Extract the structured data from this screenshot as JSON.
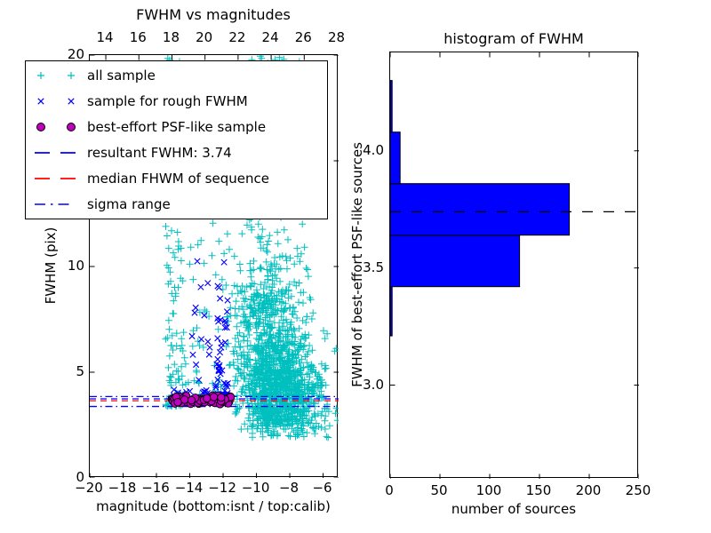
{
  "colors": {
    "cyan": "#00bfbf",
    "blue": "#0000ff",
    "magenta": "#bf00bf",
    "red": "#ff0000",
    "black": "#000000",
    "background": "#ffffff"
  },
  "legend": {
    "entries": [
      {
        "id": "all-sample",
        "marker": "plus",
        "color": "#00bfbf",
        "label": "all sample"
      },
      {
        "id": "rough-fwhm-sample",
        "marker": "cross",
        "color": "#0000ff",
        "label": "sample for rough FWHM"
      },
      {
        "id": "psf-like-sample",
        "marker": "circle",
        "color": "#bf00bf",
        "edge_color": "#000000",
        "label": "best-effort PSF-like sample"
      },
      {
        "id": "resultant-fwhm",
        "marker": "dashed-line",
        "color": "#0000ff",
        "label": "resultant FWHM: 3.74"
      },
      {
        "id": "median-fwhm",
        "marker": "dashed-line",
        "color": "#ff0000",
        "label": "median FHWM of sequence"
      },
      {
        "id": "sigma-range",
        "marker": "dashdot-line",
        "color": "#0000ff",
        "label": "sigma range"
      }
    ]
  },
  "chart_data": [
    {
      "type": "scatter",
      "title": "FWHM vs magnitudes",
      "xlabel": "magnitude (bottom:isnt / top:calib)",
      "ylabel": "FWHM (pix)",
      "xlim": [
        -20,
        -5.07
      ],
      "ylim": [
        0,
        20
      ],
      "top_xlim": [
        13.03,
        28.08
      ],
      "x_ticks": [
        -20,
        -18,
        -16,
        -14,
        -12,
        -10,
        -8,
        -6
      ],
      "x_tick_labels": [
        "−20",
        "−18",
        "−16",
        "−14",
        "−12",
        "−10",
        "−8",
        "−6"
      ],
      "top_ticks": [
        14,
        16,
        18,
        20,
        22,
        24,
        26,
        28
      ],
      "top_tick_labels": [
        "14",
        "16",
        "18",
        "20",
        "22",
        "24",
        "26",
        "28"
      ],
      "y_ticks": [
        0,
        5,
        10,
        15,
        20
      ],
      "y_tick_labels": [
        "0",
        "5",
        "10",
        "15",
        "20"
      ],
      "grid": false,
      "legend_position": "upper left",
      "hlines": [
        {
          "name": "sigma-upper",
          "y": 3.85,
          "color": "#0000ff",
          "style": "dashdot"
        },
        {
          "name": "resultant-fwhm",
          "y": 3.74,
          "color": "#0000ff",
          "style": "dashed"
        },
        {
          "name": "median-fwhm",
          "y": 3.65,
          "color": "#ff0000",
          "style": "dashed"
        },
        {
          "name": "sigma-lower",
          "y": 3.38,
          "color": "#0000ff",
          "style": "dashdot"
        }
      ],
      "seed": 42,
      "series": [
        {
          "name": "all sample",
          "marker": "plus",
          "color": "#00bfbf",
          "clusters": [
            {
              "n": 110,
              "x": [
                -15.45,
                -14.35
              ],
              "y": [
                3.4,
                20.0
              ],
              "ydist": "powlow"
            },
            {
              "n": 55,
              "x": [
                -14.35,
                -12.55
              ],
              "y": [
                3.6,
                19.5
              ],
              "ydist": "powlow"
            },
            {
              "n": 45,
              "x": [
                -12.55,
                -11.45
              ],
              "y": [
                3.8,
                20.0
              ],
              "ydist": "powlow"
            },
            {
              "n": 850,
              "xdist": "gauss",
              "xmu": -8.6,
              "xsigma": 1.25,
              "x": [
                -11.4,
                -5.1
              ],
              "ydist": "gauss",
              "ymu": 4.3,
              "ysigma": 1.1,
              "y": [
                2.3,
                12.0
              ]
            },
            {
              "n": 480,
              "xdist": "gauss",
              "xmu": -9.3,
              "xsigma": 1.2,
              "x": [
                -11.4,
                -5.1
              ],
              "ydist": "gauss",
              "ymu": 6.5,
              "ysigma": 2.2,
              "y": [
                2.6,
                13.5
              ]
            },
            {
              "n": 130,
              "xdist": "gauss",
              "xmu": -9.4,
              "xsigma": 0.9,
              "x": [
                -11.3,
                -6.0
              ],
              "y": [
                8.0,
                20.0
              ],
              "ydist": "powlow"
            },
            {
              "n": 130,
              "xdist": "gauss",
              "xmu": -7.8,
              "xsigma": 1.4,
              "x": [
                -11.0,
                -5.1
              ],
              "y": [
                1.9,
                3.3
              ],
              "ydist": "uniform"
            },
            {
              "n": 10,
              "x": [
                -10.4,
                -8.4
              ],
              "y": [
                19.3,
                20.0
              ],
              "ydist": "uniform"
            }
          ]
        },
        {
          "name": "sample for rough FWHM",
          "marker": "cross",
          "color": "#0000ff",
          "clusters": [
            {
              "n": 52,
              "x": [
                -12.45,
                -11.7
              ],
              "y": [
                3.9,
                13.5
              ],
              "ydist": "powlow"
            },
            {
              "n": 6,
              "x": [
                -12.4,
                -11.75
              ],
              "y": [
                13.5,
                18.0
              ],
              "ydist": "uniform"
            },
            {
              "n": 18,
              "x": [
                -13.9,
                -12.45
              ],
              "y": [
                4.0,
                11.5
              ],
              "ydist": "powlow"
            },
            {
              "n": 48,
              "x": [
                -15.0,
                -11.5
              ],
              "ydist": "gauss",
              "ymu": 3.8,
              "ysigma": 0.18,
              "y": [
                3.45,
                4.3
              ]
            }
          ]
        },
        {
          "name": "best-effort PSF-like sample",
          "marker": "circle",
          "color": "#bf00bf",
          "edge_color": "#000000",
          "clusters": [
            {
              "n": 60,
              "x": [
                -15.1,
                -11.55
              ],
              "ydist": "gauss",
              "ymu": 3.68,
              "ysigma": 0.11,
              "y": [
                3.44,
                3.96
              ]
            }
          ]
        }
      ]
    },
    {
      "type": "bar",
      "orientation": "horizontal",
      "title": "histogram of FWHM",
      "xlabel": "number of sources",
      "ylabel": "FWHM of best-effort PSF-like sources",
      "xlim": [
        0,
        250
      ],
      "ylim": [
        2.6,
        4.42
      ],
      "x_ticks": [
        0,
        50,
        100,
        150,
        200,
        250
      ],
      "x_tick_labels": [
        "0",
        "50",
        "100",
        "150",
        "200",
        "250"
      ],
      "y_ticks": [
        3.0,
        3.5,
        4.0
      ],
      "y_tick_labels": [
        "3.0",
        "3.5",
        "4.0"
      ],
      "grid": false,
      "bin_edges": [
        3.21,
        3.42,
        3.64,
        3.86,
        4.08,
        4.3
      ],
      "counts": [
        2,
        130,
        180,
        10,
        2
      ],
      "bar_color": "#0000ff",
      "bar_edge_color": "#000000",
      "dashed_line": {
        "y": 3.74,
        "color": "#000000",
        "style": "dashed"
      }
    }
  ]
}
